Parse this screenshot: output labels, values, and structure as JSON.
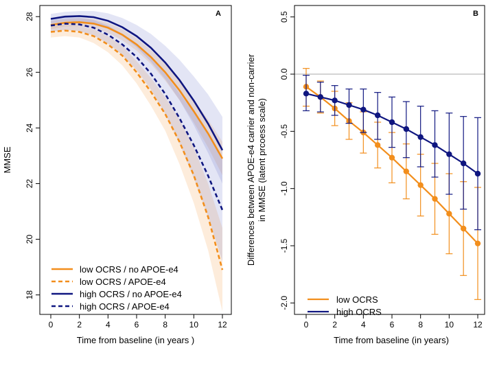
{
  "chart_data": [
    {
      "type": "line",
      "panel_label": "A",
      "xlabel": "Time from baseline (in years )",
      "ylabel": "MMSE",
      "xlim": [
        0,
        12
      ],
      "ylim": [
        17.3,
        28.4
      ],
      "xticks": [
        "0",
        "2",
        "4",
        "6",
        "8",
        "10",
        "12"
      ],
      "yticks": [
        "18",
        "20",
        "22",
        "24",
        "26",
        "28"
      ],
      "x": [
        0,
        1,
        2,
        3,
        4,
        5,
        6,
        7,
        8,
        9,
        10,
        11,
        12
      ],
      "series": [
        {
          "name": "low OCRS / no APOE-e4",
          "color": "#F28E1C",
          "dash": "solid",
          "values": [
            27.7,
            27.78,
            27.8,
            27.75,
            27.6,
            27.35,
            27.0,
            26.55,
            26.0,
            25.35,
            24.6,
            23.8,
            22.9
          ],
          "band_low": [
            27.55,
            27.65,
            27.65,
            27.58,
            27.42,
            27.15,
            26.78,
            26.3,
            25.7,
            25.0,
            24.2,
            23.3,
            22.3
          ],
          "band_high": [
            27.85,
            27.92,
            27.95,
            27.92,
            27.78,
            27.55,
            27.22,
            26.8,
            26.3,
            25.7,
            25.0,
            24.3,
            23.5
          ]
        },
        {
          "name": "low OCRS / APOE-e4",
          "color": "#F28E1C",
          "dash": "dashed",
          "values": [
            27.45,
            27.5,
            27.45,
            27.3,
            27.0,
            26.6,
            26.0,
            25.3,
            24.5,
            23.5,
            22.3,
            20.8,
            18.9
          ],
          "band_low": [
            27.25,
            27.3,
            27.25,
            27.05,
            26.72,
            26.25,
            25.6,
            24.8,
            23.9,
            22.7,
            21.3,
            19.6,
            17.4
          ],
          "band_high": [
            27.65,
            27.7,
            27.65,
            27.55,
            27.3,
            26.95,
            26.4,
            25.8,
            25.1,
            24.3,
            23.3,
            22.0,
            20.4
          ]
        },
        {
          "name": "high OCRS / no APOE-e4",
          "color": "#0F1680",
          "dash": "solid",
          "values": [
            27.92,
            28.0,
            28.02,
            27.98,
            27.85,
            27.62,
            27.3,
            26.88,
            26.35,
            25.72,
            24.98,
            24.15,
            23.2
          ],
          "band_low": [
            27.75,
            27.83,
            27.83,
            27.75,
            27.58,
            27.3,
            26.9,
            26.38,
            25.75,
            25.0,
            24.1,
            23.1,
            22.0
          ],
          "band_high": [
            28.1,
            28.17,
            28.2,
            28.2,
            28.12,
            27.95,
            27.7,
            27.38,
            26.95,
            26.45,
            25.85,
            25.2,
            24.4
          ]
        },
        {
          "name": "high OCRS / APOE-e4",
          "color": "#0F1680",
          "dash": "dashed",
          "values": [
            27.68,
            27.75,
            27.72,
            27.6,
            27.35,
            27.0,
            26.55,
            25.95,
            25.22,
            24.35,
            23.38,
            22.28,
            21.05
          ],
          "band_low": [
            27.45,
            27.52,
            27.48,
            27.32,
            27.03,
            26.62,
            26.08,
            25.38,
            24.5,
            23.45,
            22.2,
            20.8,
            19.2
          ],
          "band_high": [
            27.9,
            27.98,
            27.96,
            27.88,
            27.68,
            27.38,
            27.02,
            26.52,
            25.94,
            25.25,
            24.56,
            23.76,
            22.9
          ]
        }
      ]
    },
    {
      "type": "line",
      "panel_label": "B",
      "xlabel": "Time from baseline (in years)",
      "ylabel_line1": "Differences between APOE-e4 carrier and non-carrier",
      "ylabel_line2": "in MMSE (latent prcoess scale)",
      "xlim": [
        0,
        12
      ],
      "ylim": [
        -2.1,
        0.6
      ],
      "xticks": [
        "0",
        "2",
        "4",
        "6",
        "8",
        "10",
        "12"
      ],
      "yticks": [
        "-2.0",
        "-1.5",
        "-1.0",
        "-0.5",
        "0.0",
        "0.5"
      ],
      "reference_line": 0,
      "x": [
        0,
        1,
        2,
        3,
        4,
        5,
        6,
        7,
        8,
        9,
        10,
        11,
        12
      ],
      "series": [
        {
          "name": "low OCRS",
          "color": "#F28E1C",
          "values": [
            -0.11,
            -0.2,
            -0.3,
            -0.41,
            -0.51,
            -0.62,
            -0.73,
            -0.85,
            -0.97,
            -1.09,
            -1.22,
            -1.35,
            -1.48
          ],
          "err_low": [
            -0.28,
            -0.34,
            -0.45,
            -0.57,
            -0.69,
            -0.82,
            -0.95,
            -1.09,
            -1.24,
            -1.4,
            -1.57,
            -1.76,
            -1.97
          ],
          "err_high": [
            0.05,
            -0.06,
            -0.15,
            -0.25,
            -0.33,
            -0.42,
            -0.51,
            -0.61,
            -0.7,
            -0.78,
            -0.87,
            -0.94,
            -0.99
          ]
        },
        {
          "name": "high OCRS",
          "color": "#0F1680",
          "values": [
            -0.17,
            -0.2,
            -0.23,
            -0.27,
            -0.31,
            -0.36,
            -0.42,
            -0.48,
            -0.55,
            -0.62,
            -0.7,
            -0.78,
            -0.87
          ],
          "err_low": [
            -0.32,
            -0.33,
            -0.36,
            -0.43,
            -0.51,
            -0.57,
            -0.64,
            -0.73,
            -0.81,
            -0.9,
            -1.05,
            -1.18,
            -1.36
          ],
          "err_high": [
            -0.01,
            -0.07,
            -0.1,
            -0.13,
            -0.13,
            -0.16,
            -0.2,
            -0.24,
            -0.28,
            -0.32,
            -0.34,
            -0.37,
            -0.38
          ]
        }
      ]
    }
  ]
}
